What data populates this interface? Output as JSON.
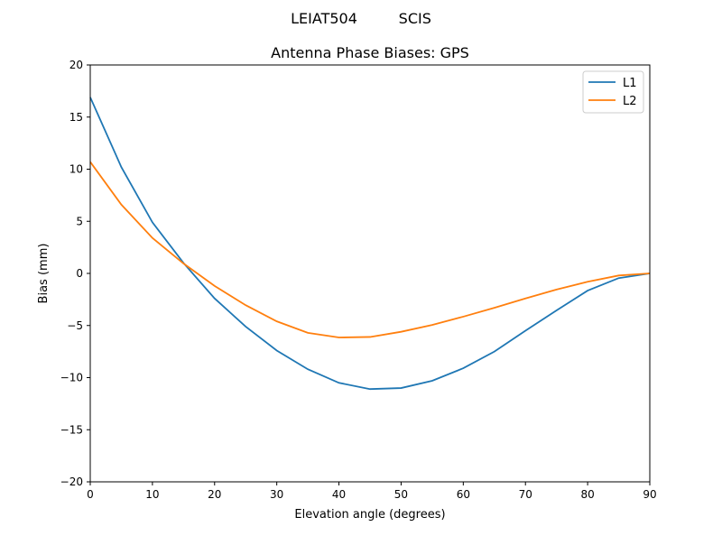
{
  "chart_data": {
    "type": "line",
    "suptitle": "LEIAT504         SCIS",
    "title": "Antenna Phase Biases: GPS",
    "xlabel": "Elevation angle (degrees)",
    "ylabel": "Bias (mm)",
    "xlim": [
      0,
      90
    ],
    "ylim": [
      -20,
      20
    ],
    "xticks": [
      0,
      10,
      20,
      30,
      40,
      50,
      60,
      70,
      80,
      90
    ],
    "yticks": [
      -20,
      -15,
      -10,
      -5,
      0,
      5,
      10,
      15,
      20
    ],
    "ytick_labels": [
      "−20",
      "−15",
      "−10",
      "−5",
      "0",
      "5",
      "10",
      "15",
      "20"
    ],
    "grid": false,
    "legend_position": "top-right",
    "x": [
      0,
      5,
      10,
      15,
      20,
      25,
      30,
      35,
      40,
      45,
      50,
      55,
      60,
      65,
      70,
      75,
      80,
      85,
      90
    ],
    "series": [
      {
        "name": "L1",
        "color": "#1f77b4",
        "values": [
          16.9,
          10.2,
          4.9,
          1.0,
          -2.4,
          -5.1,
          -7.4,
          -9.2,
          -10.5,
          -11.1,
          -11.0,
          -10.3,
          -9.1,
          -7.5,
          -5.5,
          -3.55,
          -1.65,
          -0.45,
          0.0
        ]
      },
      {
        "name": "L2",
        "color": "#ff7f0e",
        "values": [
          10.7,
          6.6,
          3.4,
          0.95,
          -1.2,
          -3.05,
          -4.6,
          -5.7,
          -6.15,
          -6.1,
          -5.6,
          -4.95,
          -4.15,
          -3.3,
          -2.4,
          -1.55,
          -0.8,
          -0.2,
          0.0
        ]
      }
    ]
  }
}
